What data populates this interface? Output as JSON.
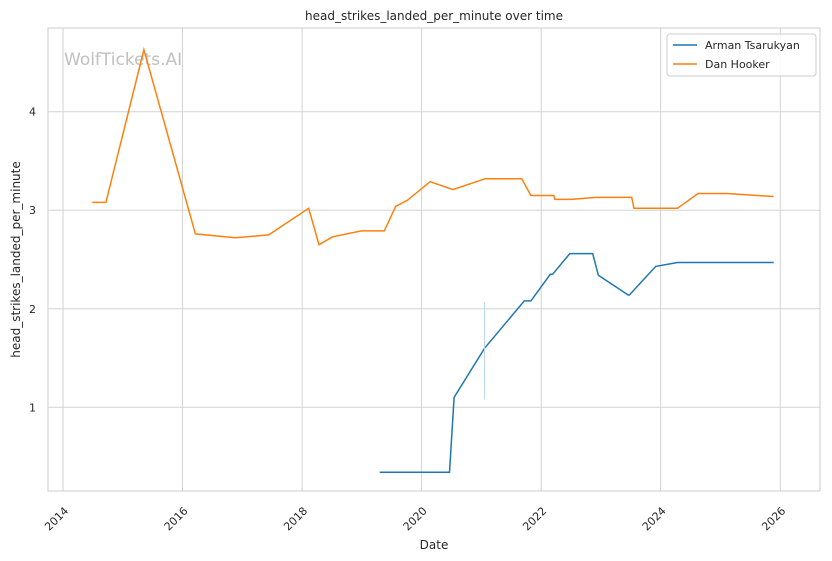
{
  "chart_data": {
    "type": "line",
    "title": "head_strikes_landed_per_minute over time",
    "xlabel": "Date",
    "ylabel": "head_strikes_landed_per_minute",
    "watermark": "WolfTickets.AI",
    "xlim": [
      "2013-10-01",
      "2026-09-01"
    ],
    "ylim": [
      0.15,
      4.85
    ],
    "x_ticks": [
      "2014",
      "2016",
      "2018",
      "2020",
      "2022",
      "2024",
      "2026"
    ],
    "y_ticks": [
      1,
      2,
      3,
      4
    ],
    "grid": true,
    "legend_position": "top-right",
    "series": [
      {
        "name": "Arman Tsarukyan",
        "color": "#1f77b4",
        "points": [
          [
            "2019-04-20",
            0.34
          ],
          [
            "2020-06-20",
            0.34
          ],
          [
            "2020-07-18",
            1.1
          ],
          [
            "2021-01-20",
            1.6
          ],
          [
            "2021-09-20",
            2.08
          ],
          [
            "2021-10-30",
            2.08
          ],
          [
            "2022-02-26",
            2.35
          ],
          [
            "2022-03-12",
            2.35
          ],
          [
            "2022-06-25",
            2.56
          ],
          [
            "2022-11-12",
            2.56
          ],
          [
            "2022-12-17",
            2.34
          ],
          [
            "2023-06-17",
            2.14
          ],
          [
            "2023-06-24",
            2.14
          ],
          [
            "2023-12-02",
            2.43
          ],
          [
            "2024-04-13",
            2.47
          ],
          [
            "2025-11-22",
            2.47
          ]
        ]
      },
      {
        "name": "Dan Hooker",
        "color": "#ff7f0e",
        "points": [
          [
            "2014-06-28",
            3.08
          ],
          [
            "2014-09-20",
            3.08
          ],
          [
            "2015-05-10",
            4.63
          ],
          [
            "2016-03-20",
            2.76
          ],
          [
            "2016-11-19",
            2.72
          ],
          [
            "2017-06-11",
            2.75
          ],
          [
            "2018-02-10",
            3.02
          ],
          [
            "2018-04-14",
            2.65
          ],
          [
            "2018-07-07",
            2.73
          ],
          [
            "2018-12-29",
            2.79
          ],
          [
            "2019-05-18",
            2.79
          ],
          [
            "2019-07-27",
            3.04
          ],
          [
            "2019-10-05",
            3.1
          ],
          [
            "2020-02-22",
            3.29
          ],
          [
            "2020-07-11",
            3.21
          ],
          [
            "2021-01-23",
            3.32
          ],
          [
            "2021-09-04",
            3.32
          ],
          [
            "2021-10-30",
            3.15
          ],
          [
            "2022-03-19",
            3.15
          ],
          [
            "2022-03-26",
            3.11
          ],
          [
            "2022-07-02",
            3.11
          ],
          [
            "2022-12-03",
            3.13
          ],
          [
            "2023-07-08",
            3.13
          ],
          [
            "2023-07-22",
            3.02
          ],
          [
            "2024-04-13",
            3.02
          ],
          [
            "2024-08-17",
            3.17
          ],
          [
            "2025-02-08",
            3.17
          ],
          [
            "2025-11-22",
            3.14
          ]
        ]
      }
    ]
  }
}
